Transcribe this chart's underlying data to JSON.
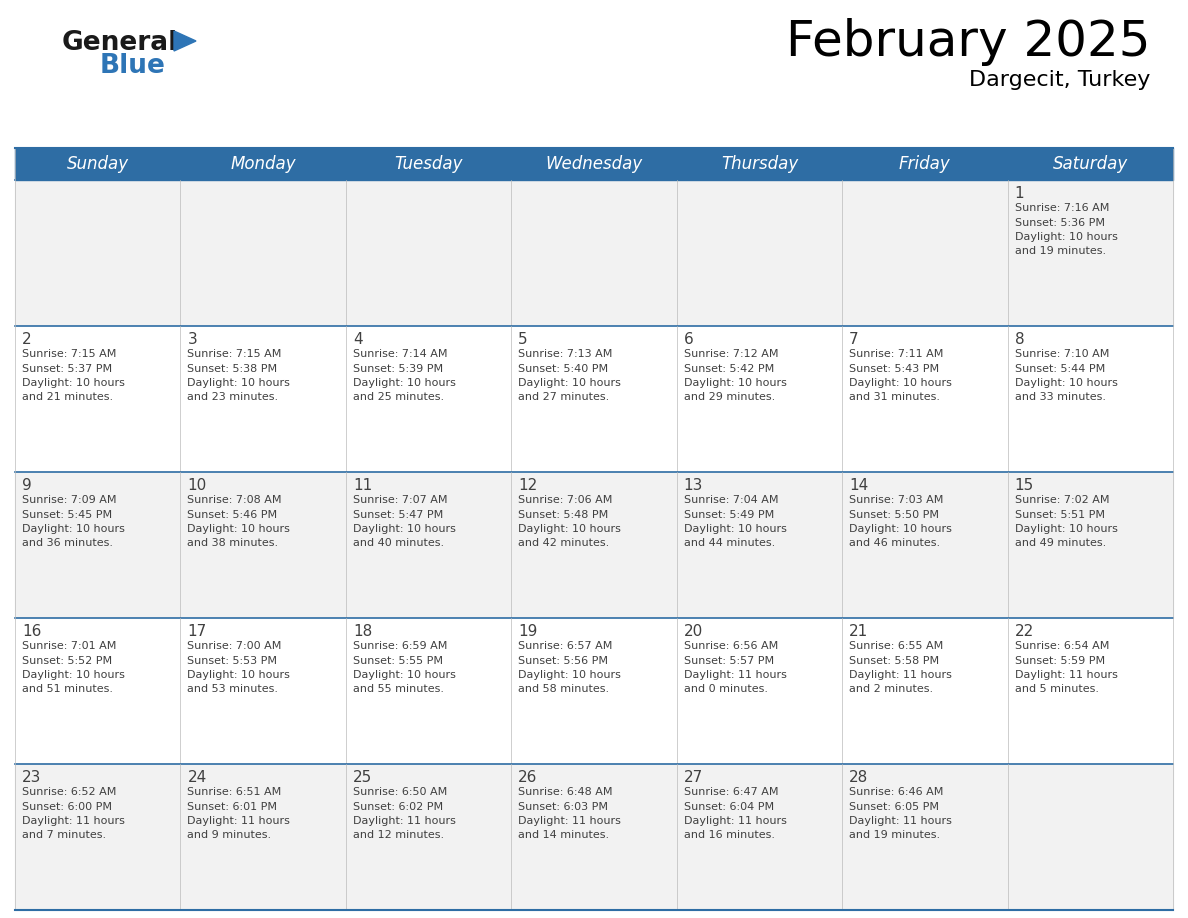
{
  "title": "February 2025",
  "subtitle": "Dargecit, Turkey",
  "header_bg": "#2E6DA4",
  "header_text_color": "#FFFFFF",
  "days_of_week": [
    "Sunday",
    "Monday",
    "Tuesday",
    "Wednesday",
    "Thursday",
    "Friday",
    "Saturday"
  ],
  "cell_bg_odd": "#F2F2F2",
  "cell_bg_even": "#FFFFFF",
  "border_color": "#2E6DA4",
  "text_color": "#404040",
  "calendar_data": [
    [
      {
        "day": null,
        "lines": []
      },
      {
        "day": null,
        "lines": []
      },
      {
        "day": null,
        "lines": []
      },
      {
        "day": null,
        "lines": []
      },
      {
        "day": null,
        "lines": []
      },
      {
        "day": null,
        "lines": []
      },
      {
        "day": 1,
        "lines": [
          "Sunrise: 7:16 AM",
          "Sunset: 5:36 PM",
          "Daylight: 10 hours",
          "and 19 minutes."
        ]
      }
    ],
    [
      {
        "day": 2,
        "lines": [
          "Sunrise: 7:15 AM",
          "Sunset: 5:37 PM",
          "Daylight: 10 hours",
          "and 21 minutes."
        ]
      },
      {
        "day": 3,
        "lines": [
          "Sunrise: 7:15 AM",
          "Sunset: 5:38 PM",
          "Daylight: 10 hours",
          "and 23 minutes."
        ]
      },
      {
        "day": 4,
        "lines": [
          "Sunrise: 7:14 AM",
          "Sunset: 5:39 PM",
          "Daylight: 10 hours",
          "and 25 minutes."
        ]
      },
      {
        "day": 5,
        "lines": [
          "Sunrise: 7:13 AM",
          "Sunset: 5:40 PM",
          "Daylight: 10 hours",
          "and 27 minutes."
        ]
      },
      {
        "day": 6,
        "lines": [
          "Sunrise: 7:12 AM",
          "Sunset: 5:42 PM",
          "Daylight: 10 hours",
          "and 29 minutes."
        ]
      },
      {
        "day": 7,
        "lines": [
          "Sunrise: 7:11 AM",
          "Sunset: 5:43 PM",
          "Daylight: 10 hours",
          "and 31 minutes."
        ]
      },
      {
        "day": 8,
        "lines": [
          "Sunrise: 7:10 AM",
          "Sunset: 5:44 PM",
          "Daylight: 10 hours",
          "and 33 minutes."
        ]
      }
    ],
    [
      {
        "day": 9,
        "lines": [
          "Sunrise: 7:09 AM",
          "Sunset: 5:45 PM",
          "Daylight: 10 hours",
          "and 36 minutes."
        ]
      },
      {
        "day": 10,
        "lines": [
          "Sunrise: 7:08 AM",
          "Sunset: 5:46 PM",
          "Daylight: 10 hours",
          "and 38 minutes."
        ]
      },
      {
        "day": 11,
        "lines": [
          "Sunrise: 7:07 AM",
          "Sunset: 5:47 PM",
          "Daylight: 10 hours",
          "and 40 minutes."
        ]
      },
      {
        "day": 12,
        "lines": [
          "Sunrise: 7:06 AM",
          "Sunset: 5:48 PM",
          "Daylight: 10 hours",
          "and 42 minutes."
        ]
      },
      {
        "day": 13,
        "lines": [
          "Sunrise: 7:04 AM",
          "Sunset: 5:49 PM",
          "Daylight: 10 hours",
          "and 44 minutes."
        ]
      },
      {
        "day": 14,
        "lines": [
          "Sunrise: 7:03 AM",
          "Sunset: 5:50 PM",
          "Daylight: 10 hours",
          "and 46 minutes."
        ]
      },
      {
        "day": 15,
        "lines": [
          "Sunrise: 7:02 AM",
          "Sunset: 5:51 PM",
          "Daylight: 10 hours",
          "and 49 minutes."
        ]
      }
    ],
    [
      {
        "day": 16,
        "lines": [
          "Sunrise: 7:01 AM",
          "Sunset: 5:52 PM",
          "Daylight: 10 hours",
          "and 51 minutes."
        ]
      },
      {
        "day": 17,
        "lines": [
          "Sunrise: 7:00 AM",
          "Sunset: 5:53 PM",
          "Daylight: 10 hours",
          "and 53 minutes."
        ]
      },
      {
        "day": 18,
        "lines": [
          "Sunrise: 6:59 AM",
          "Sunset: 5:55 PM",
          "Daylight: 10 hours",
          "and 55 minutes."
        ]
      },
      {
        "day": 19,
        "lines": [
          "Sunrise: 6:57 AM",
          "Sunset: 5:56 PM",
          "Daylight: 10 hours",
          "and 58 minutes."
        ]
      },
      {
        "day": 20,
        "lines": [
          "Sunrise: 6:56 AM",
          "Sunset: 5:57 PM",
          "Daylight: 11 hours",
          "and 0 minutes."
        ]
      },
      {
        "day": 21,
        "lines": [
          "Sunrise: 6:55 AM",
          "Sunset: 5:58 PM",
          "Daylight: 11 hours",
          "and 2 minutes."
        ]
      },
      {
        "day": 22,
        "lines": [
          "Sunrise: 6:54 AM",
          "Sunset: 5:59 PM",
          "Daylight: 11 hours",
          "and 5 minutes."
        ]
      }
    ],
    [
      {
        "day": 23,
        "lines": [
          "Sunrise: 6:52 AM",
          "Sunset: 6:00 PM",
          "Daylight: 11 hours",
          "and 7 minutes."
        ]
      },
      {
        "day": 24,
        "lines": [
          "Sunrise: 6:51 AM",
          "Sunset: 6:01 PM",
          "Daylight: 11 hours",
          "and 9 minutes."
        ]
      },
      {
        "day": 25,
        "lines": [
          "Sunrise: 6:50 AM",
          "Sunset: 6:02 PM",
          "Daylight: 11 hours",
          "and 12 minutes."
        ]
      },
      {
        "day": 26,
        "lines": [
          "Sunrise: 6:48 AM",
          "Sunset: 6:03 PM",
          "Daylight: 11 hours",
          "and 14 minutes."
        ]
      },
      {
        "day": 27,
        "lines": [
          "Sunrise: 6:47 AM",
          "Sunset: 6:04 PM",
          "Daylight: 11 hours",
          "and 16 minutes."
        ]
      },
      {
        "day": 28,
        "lines": [
          "Sunrise: 6:46 AM",
          "Sunset: 6:05 PM",
          "Daylight: 11 hours",
          "and 19 minutes."
        ]
      },
      {
        "day": null,
        "lines": []
      }
    ]
  ],
  "logo_black_color": "#1a1a1a",
  "logo_blue_color": "#2E75B6",
  "fig_width": 11.88,
  "fig_height": 9.18,
  "dpi": 100
}
